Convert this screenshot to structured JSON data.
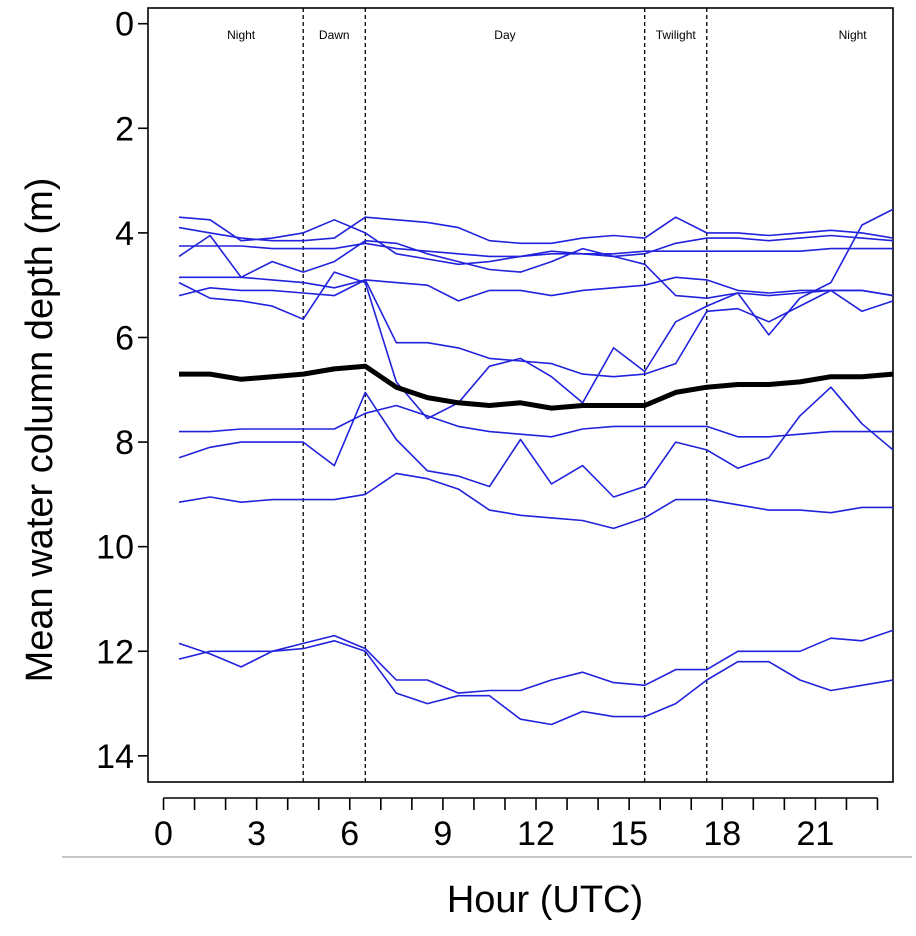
{
  "chart_data": {
    "type": "line",
    "title": "",
    "xlabel": "Hour (UTC)",
    "ylabel": "Mean water column depth (m)",
    "xlim": [
      -0.5,
      23.5
    ],
    "ylim": [
      14.5,
      -0.3
    ],
    "y_inverted": true,
    "xticks": [
      0,
      3,
      6,
      9,
      12,
      15,
      18,
      21
    ],
    "xticks_minor": [
      0,
      1,
      2,
      3,
      4,
      5,
      6,
      7,
      8,
      9,
      10,
      11,
      12,
      13,
      14,
      15,
      16,
      17,
      18,
      19,
      20,
      21,
      22,
      23
    ],
    "yticks": [
      0,
      2,
      4,
      6,
      8,
      10,
      12,
      14
    ],
    "grid": false,
    "period_boundaries": [
      4.5,
      6.5,
      15.5,
      17.5
    ],
    "periods": [
      {
        "label": "Night",
        "x": 2.5
      },
      {
        "label": "Dawn",
        "x": 5.5
      },
      {
        "label": "Day",
        "x": 11
      },
      {
        "label": "Twilight",
        "x": 16.5
      },
      {
        "label": "Night",
        "x": 22.2
      }
    ],
    "x": [
      0.5,
      1.5,
      2.5,
      3.5,
      4.5,
      5.5,
      6.5,
      7.5,
      8.5,
      9.5,
      10.5,
      11.5,
      12.5,
      13.5,
      14.5,
      15.5,
      16.5,
      17.5,
      18.5,
      19.5,
      20.5,
      21.5,
      22.5,
      23.5
    ],
    "series_color": "#2222dd",
    "mean_color": "#000000",
    "series": [
      {
        "values": [
          3.7,
          3.75,
          4.15,
          4.1,
          4.0,
          3.75,
          4.0,
          4.4,
          4.5,
          4.6,
          4.55,
          4.45,
          4.35,
          4.4,
          4.45,
          4.4,
          4.2,
          4.1,
          4.1,
          4.15,
          4.1,
          4.05,
          4.1,
          4.15
        ]
      },
      {
        "values": [
          3.9,
          4.0,
          4.1,
          4.15,
          4.15,
          4.1,
          3.7,
          3.75,
          3.8,
          3.9,
          4.15,
          4.2,
          4.2,
          4.1,
          4.05,
          4.1,
          3.7,
          4.0,
          4.0,
          4.05,
          4.0,
          3.95,
          4.0,
          4.1
        ]
      },
      {
        "values": [
          4.25,
          4.25,
          4.25,
          4.3,
          4.3,
          4.3,
          4.2,
          4.3,
          4.35,
          4.4,
          4.45,
          4.45,
          4.4,
          4.4,
          4.4,
          4.35,
          4.35,
          4.35,
          4.35,
          4.35,
          4.35,
          4.3,
          4.3,
          4.3
        ]
      },
      {
        "values": [
          4.45,
          4.05,
          4.85,
          4.55,
          4.75,
          4.55,
          4.15,
          4.2,
          4.4,
          4.55,
          4.7,
          4.75,
          4.55,
          4.3,
          4.45,
          4.6,
          5.2,
          5.25,
          5.15,
          5.2,
          5.15,
          5.1,
          5.1,
          5.2
        ]
      },
      {
        "values": [
          4.85,
          4.85,
          4.85,
          4.9,
          4.95,
          5.05,
          4.9,
          4.95,
          5.0,
          5.3,
          5.1,
          5.1,
          5.2,
          5.1,
          5.05,
          5.0,
          4.85,
          4.9,
          5.1,
          5.15,
          5.1,
          5.1,
          5.1,
          5.2
        ]
      },
      {
        "values": [
          5.2,
          5.05,
          5.1,
          5.1,
          5.15,
          5.2,
          4.9,
          6.1,
          6.1,
          6.2,
          6.4,
          6.45,
          6.5,
          6.7,
          6.75,
          6.7,
          6.5,
          5.5,
          5.45,
          5.7,
          5.4,
          5.1,
          5.5,
          5.3
        ]
      },
      {
        "values": [
          4.95,
          5.25,
          5.3,
          5.4,
          5.65,
          4.75,
          4.95,
          6.85,
          7.55,
          7.25,
          6.55,
          6.4,
          6.75,
          7.25,
          6.2,
          6.65,
          5.7,
          5.4,
          5.15,
          5.95,
          5.25,
          4.95,
          3.85,
          3.55
        ]
      },
      {
        "values": [
          7.8,
          7.8,
          7.75,
          7.75,
          7.75,
          7.75,
          7.45,
          7.3,
          7.5,
          7.7,
          7.8,
          7.85,
          7.9,
          7.75,
          7.7,
          7.7,
          7.7,
          7.7,
          7.9,
          7.9,
          7.85,
          7.8,
          7.8,
          7.8
        ]
      },
      {
        "values": [
          8.3,
          8.1,
          8.0,
          8.0,
          8.0,
          8.45,
          7.05,
          7.95,
          8.55,
          8.65,
          8.85,
          7.95,
          8.8,
          8.45,
          9.05,
          8.85,
          8.0,
          8.15,
          8.5,
          8.3,
          7.5,
          6.95,
          7.65,
          8.15
        ]
      },
      {
        "values": [
          9.15,
          9.05,
          9.15,
          9.1,
          9.1,
          9.1,
          9.0,
          8.6,
          8.7,
          8.9,
          9.3,
          9.4,
          9.45,
          9.5,
          9.65,
          9.45,
          9.1,
          9.1,
          9.2,
          9.3,
          9.3,
          9.35,
          9.25,
          9.25
        ]
      },
      {
        "values": [
          11.85,
          12.05,
          12.3,
          12.0,
          11.85,
          11.7,
          11.95,
          12.55,
          12.55,
          12.8,
          12.75,
          12.75,
          12.55,
          12.4,
          12.6,
          12.65,
          12.35,
          12.35,
          12.0,
          12.0,
          12.0,
          11.75,
          11.8,
          11.6
        ]
      },
      {
        "values": [
          12.15,
          12.0,
          12.0,
          12.0,
          11.95,
          11.8,
          12.0,
          12.8,
          13.0,
          12.85,
          12.85,
          13.3,
          13.4,
          13.15,
          13.25,
          13.25,
          13.0,
          12.55,
          12.2,
          12.2,
          12.55,
          12.75,
          12.65,
          12.55
        ]
      }
    ],
    "mean": {
      "values": [
        6.7,
        6.7,
        6.8,
        6.75,
        6.7,
        6.6,
        6.55,
        6.95,
        7.15,
        7.25,
        7.3,
        7.25,
        7.35,
        7.3,
        7.3,
        7.3,
        7.05,
        6.95,
        6.9,
        6.9,
        6.85,
        6.75,
        6.75,
        6.7
      ]
    }
  }
}
